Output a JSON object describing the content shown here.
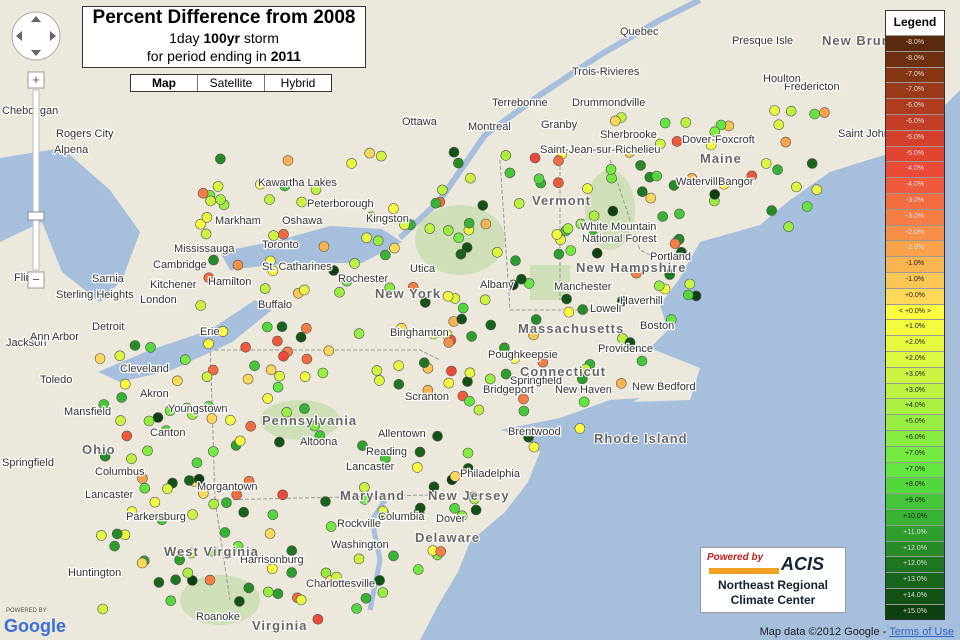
{
  "title": {
    "main": "Percent Difference from 2008",
    "line2_a": "1day",
    "line2_b": "100yr",
    "line2_c": "storm",
    "line3_a": "for period ending in",
    "line3_b": "2011"
  },
  "map_types": [
    "Map",
    "Satellite",
    "Hybrid"
  ],
  "legend": {
    "title": "Legend",
    "items": [
      {
        "label": "-8.0%",
        "color": "#5a2a0c"
      },
      {
        "label": "-8.0%",
        "color": "#6e300e"
      },
      {
        "label": "-7.0%",
        "color": "#873614"
      },
      {
        "label": "-7.0%",
        "color": "#9a3a18"
      },
      {
        "label": "-6.0%",
        "color": "#b03c20"
      },
      {
        "label": "-6.0%",
        "color": "#c23e26"
      },
      {
        "label": "-5.0%",
        "color": "#d4402c"
      },
      {
        "label": "-5.0%",
        "color": "#e24432"
      },
      {
        "label": "-4.0%",
        "color": "#ec4a38"
      },
      {
        "label": "-4.0%",
        "color": "#f05a3c"
      },
      {
        "label": "-3.0%",
        "color": "#f26c40"
      },
      {
        "label": "-3.0%",
        "color": "#f47e44"
      },
      {
        "label": "-2.0%",
        "color": "#f69048"
      },
      {
        "label": "-2.0%",
        "color": "#f8a24c"
      },
      {
        "label": "-1.0%",
        "color": "#fab450"
      },
      {
        "label": "-1.0%",
        "color": "#fcc654"
      },
      {
        "label": "+0.0%",
        "color": "#fed858"
      },
      {
        "label": "< +0.0% >",
        "color": "#ffff40"
      },
      {
        "label": "+1.0%",
        "color": "#f4fc40"
      },
      {
        "label": "+2.0%",
        "color": "#e8fa40"
      },
      {
        "label": "+2.0%",
        "color": "#dcf840"
      },
      {
        "label": "+3.0%",
        "color": "#ccf440"
      },
      {
        "label": "+3.0%",
        "color": "#bcf240"
      },
      {
        "label": "+4.0%",
        "color": "#aaf040"
      },
      {
        "label": "+5.0%",
        "color": "#98ee40"
      },
      {
        "label": "+6.0%",
        "color": "#86ec40"
      },
      {
        "label": "+7.0%",
        "color": "#74ea40"
      },
      {
        "label": "+7.0%",
        "color": "#62e640"
      },
      {
        "label": "+8.0%",
        "color": "#52d83c"
      },
      {
        "label": "+9.0%",
        "color": "#44c638"
      },
      {
        "label": "+10.0%",
        "color": "#38b232"
      },
      {
        "label": "+11.0%",
        "color": "#2e9e2c"
      },
      {
        "label": "+12.0%",
        "color": "#268a26"
      },
      {
        "label": "+12.0%",
        "color": "#1e7620"
      },
      {
        "label": "+13.0%",
        "color": "#18641a"
      },
      {
        "label": "+14.0%",
        "color": "#125214"
      },
      {
        "label": "+15.0%",
        "color": "#0c400e"
      }
    ]
  },
  "places": [
    "Quebec",
    "Trois-Rivieres",
    "Terrebonne",
    "Drummondville",
    "Ottawa",
    "Montreal",
    "Granby",
    "Sherbrooke",
    "Saint-Jean-sur-Richelieu",
    "Kawartha Lakes",
    "Peterborough",
    "Markham",
    "Oshawa",
    "Kingston",
    "Mississauga",
    "Toronto",
    "Cambridge",
    "Hamilton",
    "St. Catharines",
    "Buffalo",
    "Rochester",
    "Utica",
    "Albany",
    "New York",
    "Binghamton",
    "Massachusetts",
    "Boston",
    "Springfield",
    "Connecticut",
    "Providence",
    "New Haven",
    "Bridgeport",
    "Poughkeepsie",
    "New Bedford",
    "Rhode Island",
    "Brentwood",
    "Dover",
    "Philadelphia",
    "New Jersey",
    "Allentown",
    "Scranton",
    "Reading",
    "Lancaster",
    "Pennsylvania",
    "Altoona",
    "Columbia",
    "Maryland",
    "Rockville",
    "Washington",
    "Delaware",
    "Charlottesville",
    "Harrisonburg",
    "West Virginia",
    "Parkersburg",
    "Huntington",
    "Roanoke",
    "Virginia",
    "Morgantown",
    "Cleveland",
    "Akron",
    "Youngstown",
    "Toledo",
    "Ohio",
    "Columbus",
    "Springfield",
    "Lancaster",
    "Mansfield",
    "Canton",
    "Erie",
    "Detroit",
    "Sarnia",
    "London",
    "Jackson",
    "Flint",
    "Ann Arbor",
    "Maine",
    "Vermont",
    "New Hampshire",
    "Portland",
    "Waterville",
    "Bangor",
    "Dover-Foxcroft",
    "Saint John",
    "Fredericton",
    "Houlton",
    "Presque Isle",
    "New Brunswick",
    "Manchester",
    "Lowell",
    "Haverhill",
    "White Mountain",
    "National Forest",
    "Alpena",
    "Rogers City",
    "Cheboygan",
    "Sterling Heights",
    "Kitchener"
  ],
  "logo": {
    "powered": "Powered by",
    "acis": "ACIS",
    "line1": "Northeast Regional",
    "line2": "Climate Center"
  },
  "google": {
    "powered": "POWERED BY",
    "name": "Google"
  },
  "footer": {
    "mapdata": "Map data ©2012 Google -",
    "terms": "Terms of Use"
  }
}
